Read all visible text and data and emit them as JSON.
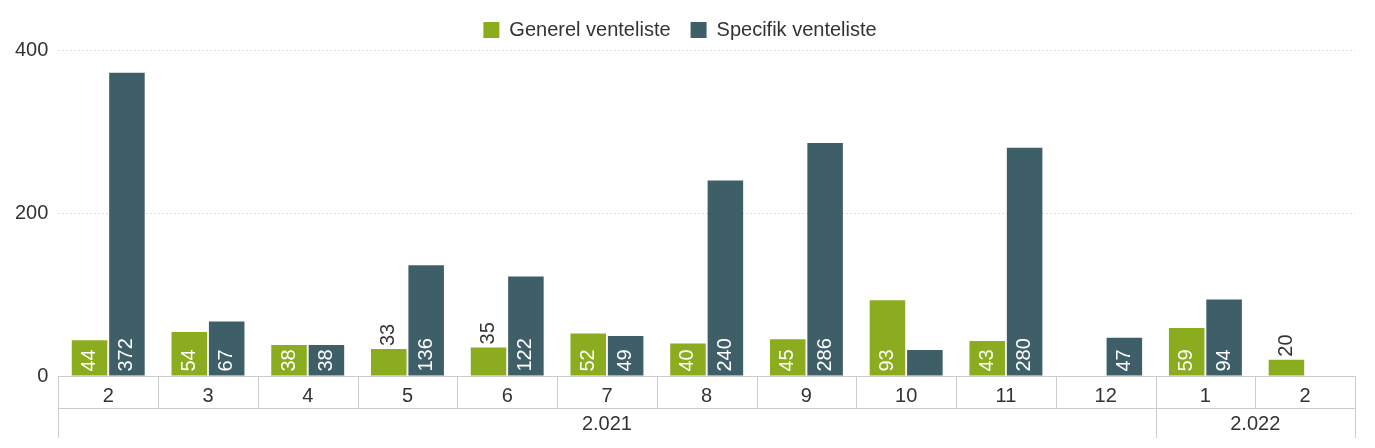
{
  "chart_data": {
    "type": "bar",
    "categories": [
      "2",
      "3",
      "4",
      "5",
      "6",
      "7",
      "8",
      "9",
      "10",
      "11",
      "12",
      "1",
      "2"
    ],
    "series": [
      {
        "name": "Generel venteliste",
        "color": "#8aac1e",
        "values": [
          44,
          54,
          38,
          33,
          35,
          52,
          40,
          45,
          93,
          43,
          null,
          59,
          20
        ],
        "value_labels": [
          "44",
          "54",
          "38",
          "33",
          "35",
          "52",
          "40",
          "45",
          "93",
          "43",
          null,
          "59",
          "20"
        ]
      },
      {
        "name": "Specifik venteliste",
        "color": "#3f5f68",
        "values": [
          372,
          67,
          38,
          136,
          122,
          49,
          240,
          286,
          32,
          280,
          47,
          94,
          null
        ],
        "value_labels": [
          "372",
          "67",
          "38",
          "136",
          "122",
          "49",
          "240",
          "286",
          null,
          "280",
          "47",
          "94",
          null
        ]
      }
    ],
    "ylim": [
      0,
      400
    ],
    "yticks": [
      0,
      200,
      400
    ],
    "grid": "y",
    "legend": "top",
    "annotations": [
      "2.021",
      "2.022"
    ]
  }
}
